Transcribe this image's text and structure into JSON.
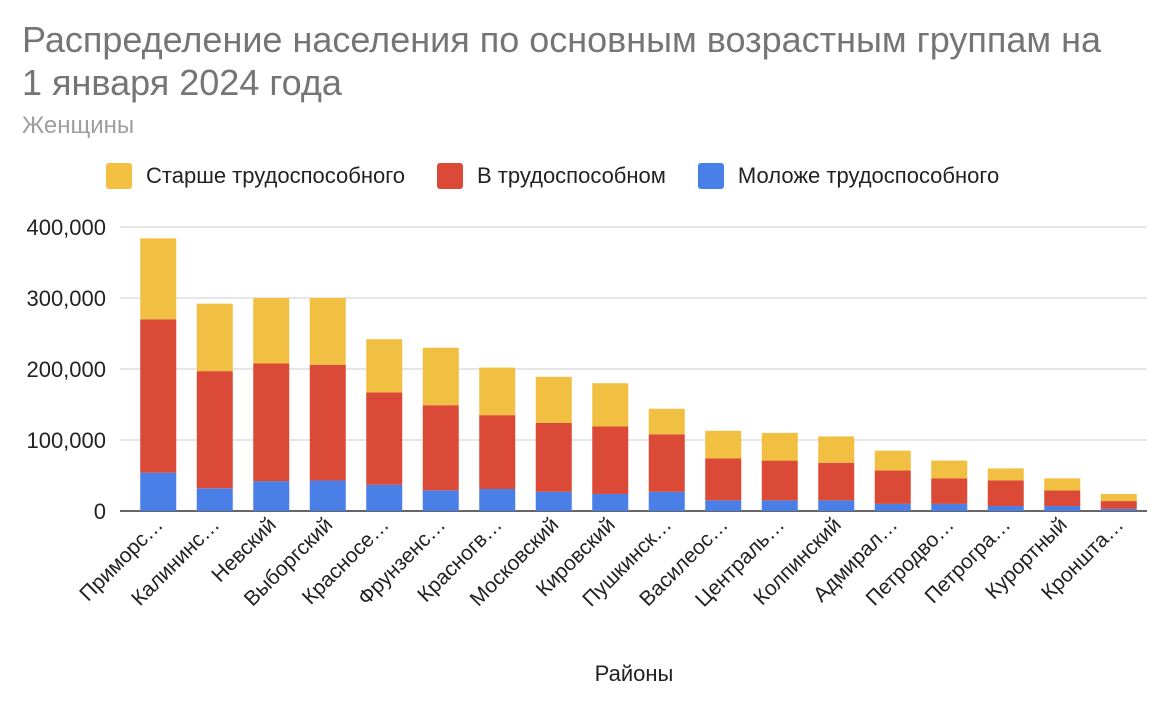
{
  "chart_data": {
    "type": "bar",
    "stacked": true,
    "title": "Распределение населения по основным возрастным группам на 1 января 2024 года",
    "subtitle": "Женщины",
    "xlabel": "Районы",
    "ylabel": "",
    "ylim": [
      0,
      400000
    ],
    "yticks": [
      "0",
      "100,000",
      "200,000",
      "300,000",
      "400,000"
    ],
    "ytick_values": [
      0,
      100000,
      200000,
      300000,
      400000
    ],
    "grid": true,
    "legend_position": "top",
    "categories": [
      "Приморс…",
      "Калининс…",
      "Невский",
      "Выборгский",
      "Красносе…",
      "Фрунзенс…",
      "Красногв…",
      "Московский",
      "Кировский",
      "Пушкинск…",
      "Василеос…",
      "Централь…",
      "Колпинский",
      "Адмирал…",
      "Петродво…",
      "Петрогра…",
      "Курортный",
      "Кроншта…"
    ],
    "series": [
      {
        "name": "Моложе трудоспособного",
        "color": "#4a7fe8",
        "values": [
          54000,
          32000,
          42000,
          43000,
          37000,
          29000,
          31000,
          27000,
          24000,
          27000,
          15000,
          15000,
          15000,
          10000,
          10000,
          7000,
          7000,
          3000
        ]
      },
      {
        "name": "В трудоспособном",
        "color": "#db4a37",
        "values": [
          216000,
          165000,
          166000,
          163000,
          130000,
          120000,
          104000,
          97000,
          95000,
          81000,
          59000,
          56000,
          53000,
          47000,
          36000,
          36000,
          22000,
          11000
        ]
      },
      {
        "name": "Старше трудоспособного",
        "color": "#f1c043",
        "values": [
          114000,
          95000,
          92000,
          94000,
          75000,
          81000,
          67000,
          65000,
          61000,
          36000,
          39000,
          39000,
          37000,
          28000,
          25000,
          17000,
          17000,
          10000
        ]
      }
    ],
    "legend_order": [
      2,
      1,
      0
    ]
  }
}
